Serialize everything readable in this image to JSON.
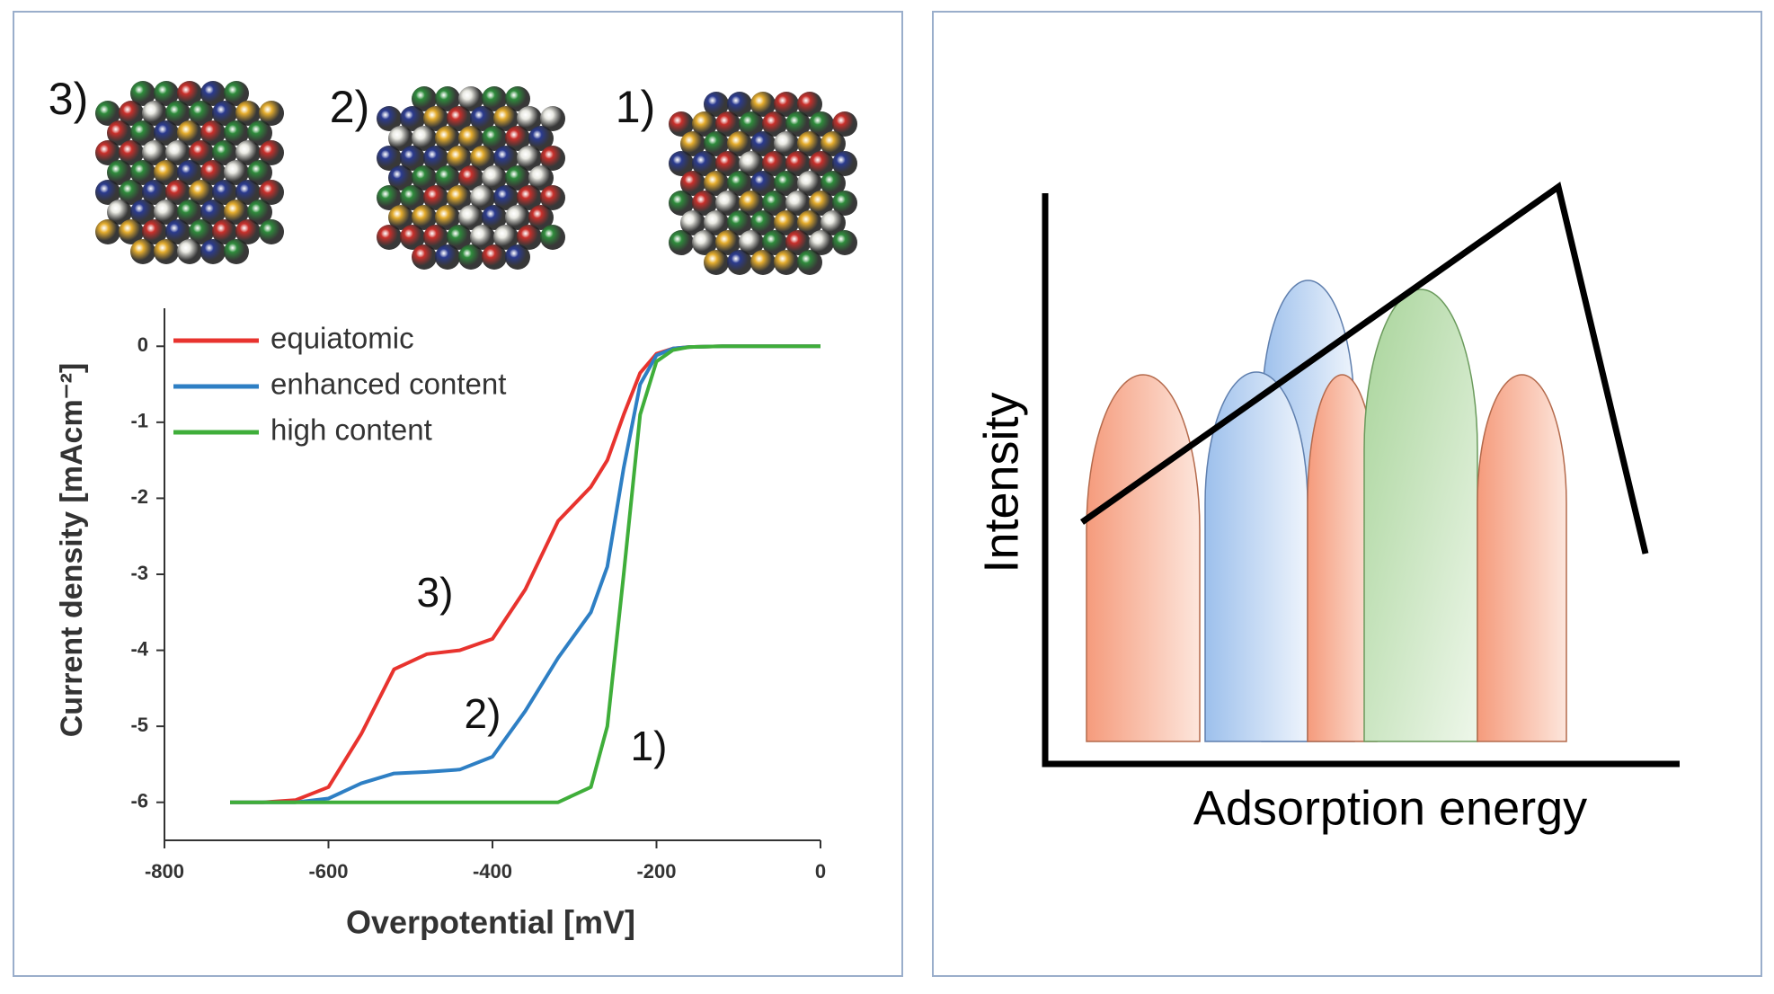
{
  "particles": [
    "3)",
    "2)",
    "1)"
  ],
  "chart_data": {
    "type": "line",
    "x_label": "Overpotential [mV]",
    "y_label": "Current density [mAcm⁻²]",
    "x": [
      -720,
      -680,
      -640,
      -600,
      -560,
      -520,
      -480,
      -440,
      -400,
      -360,
      -320,
      -280,
      -260,
      -240,
      -220,
      -200,
      -180,
      -160,
      -120,
      -80,
      -40,
      0
    ],
    "series": [
      {
        "name": "equiatomic",
        "color": "#e8332e",
        "values": [
          -6,
          -6,
          -5.97,
          -5.8,
          -5.1,
          -4.25,
          -4.05,
          -4.0,
          -3.85,
          -3.2,
          -2.3,
          -1.85,
          -1.5,
          -0.9,
          -0.35,
          -0.1,
          -0.03,
          -0.01,
          0,
          0,
          0,
          0
        ]
      },
      {
        "name": "enhanced content",
        "color": "#2e7fc4",
        "values": [
          -6,
          -6,
          -6,
          -5.95,
          -5.75,
          -5.62,
          -5.6,
          -5.57,
          -5.4,
          -4.8,
          -4.1,
          -3.5,
          -2.9,
          -1.6,
          -0.5,
          -0.12,
          -0.03,
          -0.01,
          0,
          0,
          0,
          0
        ]
      },
      {
        "name": "high content",
        "color": "#3fae3a",
        "values": [
          -6,
          -6,
          -6,
          -6,
          -6,
          -6,
          -6,
          -6,
          -6,
          -6,
          -6,
          -5.8,
          -5.0,
          -3.0,
          -0.9,
          -0.2,
          -0.05,
          -0.01,
          0,
          0,
          0,
          0
        ]
      }
    ],
    "annotations": [
      "3)",
      "2)",
      "1)"
    ],
    "xlim": [
      -800,
      0
    ],
    "xticks": [
      -800,
      -600,
      -400,
      -200,
      0
    ],
    "ylim": [
      -6.5,
      0.5
    ],
    "yticks": [
      0,
      -1,
      -2,
      -3,
      -4,
      -5,
      -6
    ],
    "grid": false,
    "legend": "upper left"
  },
  "diagram": {
    "y_label": "Intensity",
    "x_label": "Adsorption energy"
  }
}
